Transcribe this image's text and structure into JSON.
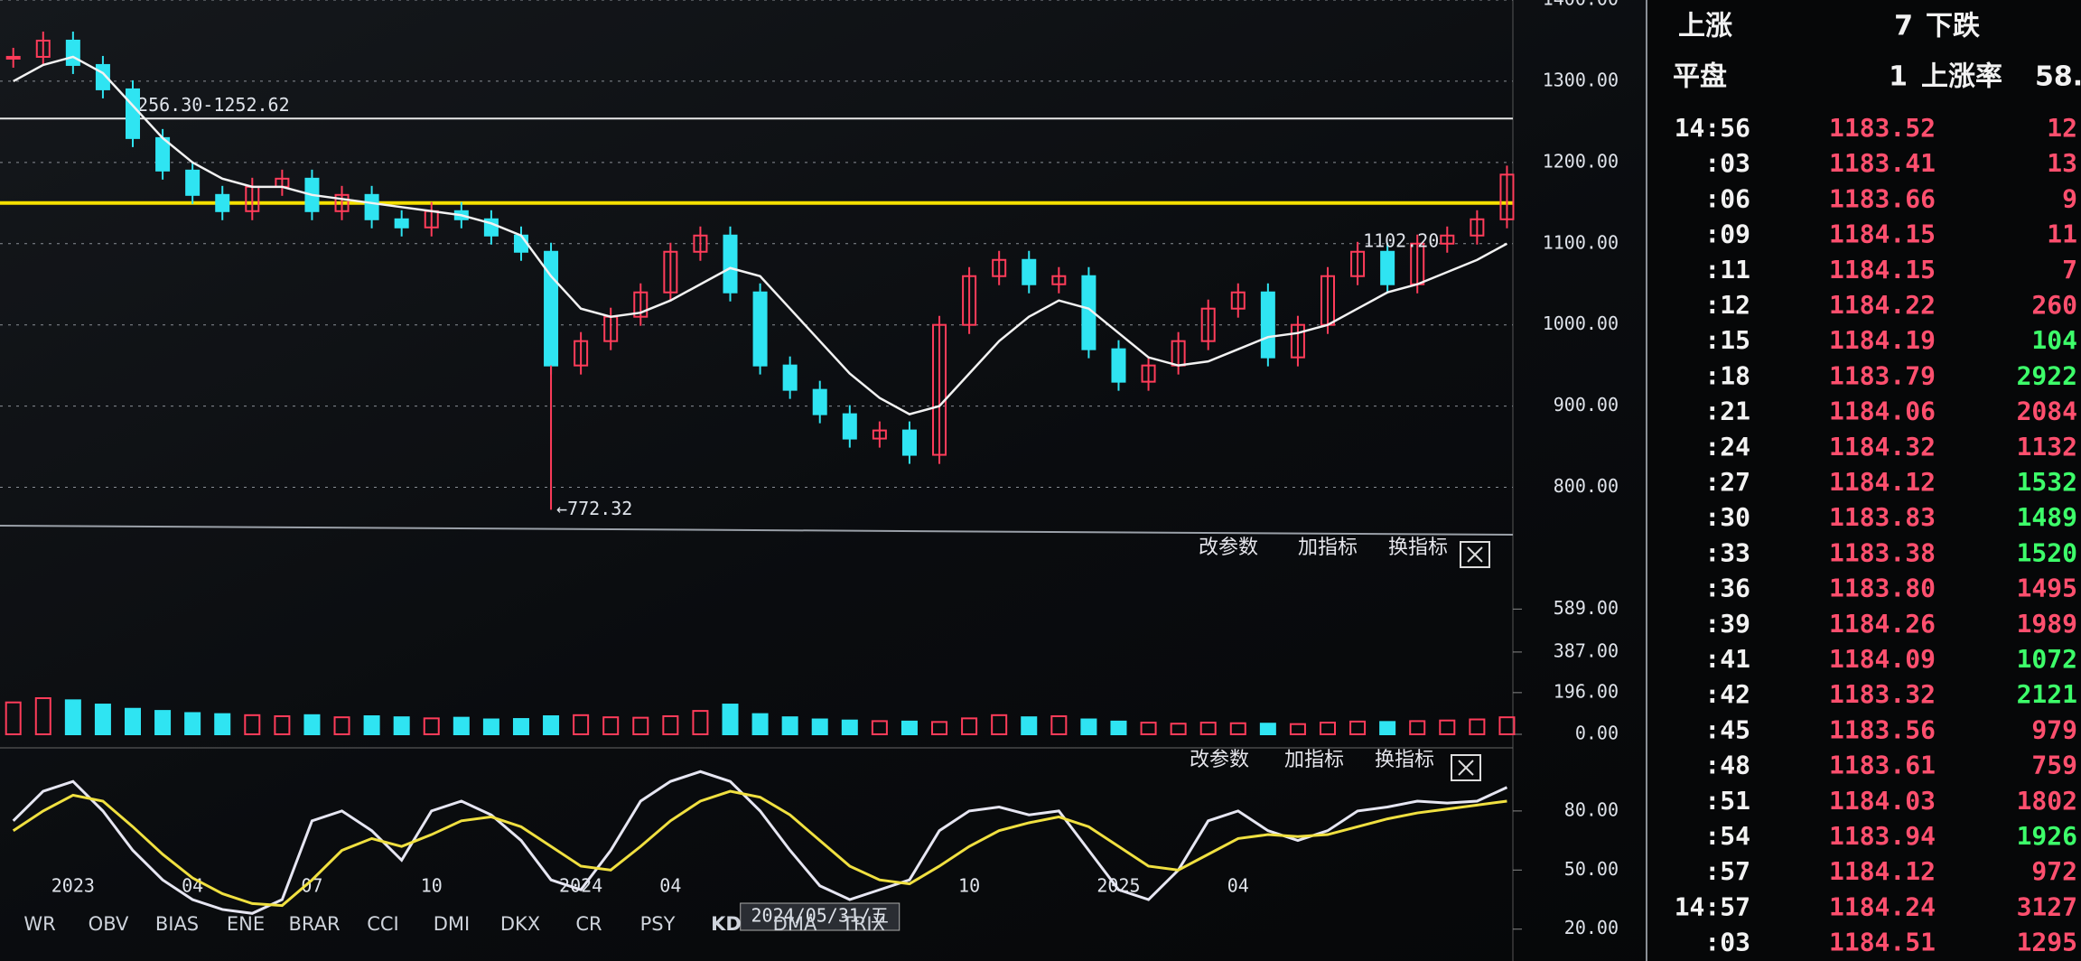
{
  "chart_data": [
    {
      "type": "candlestick",
      "values": [
        1330,
        1350,
        1320,
        1290,
        1230,
        1190,
        1160,
        1140,
        1170,
        1180,
        1140,
        1160,
        1130,
        1120,
        1140,
        1130,
        1110,
        1090,
        950,
        980,
        1010,
        1040,
        1090,
        1110,
        1040,
        950,
        920,
        890,
        860,
        870,
        840,
        1000,
        1060,
        1080,
        1050,
        1060,
        970,
        930,
        950,
        980,
        1020,
        1040,
        960,
        1000,
        1060,
        1090,
        1050,
        1100,
        1110,
        1130,
        1185
      ],
      "ma": [
        1300,
        1320,
        1330,
        1310,
        1270,
        1230,
        1200,
        1180,
        1170,
        1170,
        1160,
        1155,
        1150,
        1145,
        1140,
        1135,
        1125,
        1110,
        1060,
        1020,
        1010,
        1015,
        1030,
        1050,
        1070,
        1060,
        1020,
        980,
        940,
        910,
        890,
        900,
        940,
        980,
        1010,
        1030,
        1020,
        990,
        960,
        950,
        955,
        970,
        985,
        990,
        1000,
        1020,
        1040,
        1050,
        1065,
        1080,
        1100
      ],
      "categories": [
        null,
        null,
        "2023",
        null,
        null,
        null,
        "04",
        null,
        null,
        null,
        "07",
        null,
        null,
        null,
        "10",
        null,
        null,
        null,
        null,
        "2024",
        null,
        null,
        "04",
        null,
        null,
        null,
        null,
        "2024/05/31/五",
        null,
        null,
        null,
        null,
        "10",
        null,
        null,
        null,
        null,
        "2025",
        null,
        null,
        null,
        "04",
        null,
        null,
        null,
        null,
        null,
        null,
        null,
        null,
        null
      ],
      "cursor_index": 27,
      "ylim": [
        755,
        1400
      ],
      "yticks": [
        {
          "value": 800,
          "label": "800.00"
        },
        {
          "value": 900,
          "label": "900.00"
        },
        {
          "value": 1000,
          "label": "1000.00"
        },
        {
          "value": 1100,
          "label": "1100.00"
        },
        {
          "value": 1200,
          "label": "1200.00"
        },
        {
          "value": 1300,
          "label": "1300.00"
        },
        {
          "value": 1400,
          "label": "1400.00"
        }
      ],
      "grid": true,
      "color_up": "#ff3c5a",
      "color_down": "#2fe4f2",
      "ma_color": "#f2f2f2",
      "reference_lines": [
        {
          "value": 1150,
          "color": "#f5e000"
        },
        {
          "value": 1254,
          "color": "#e8e8e8",
          "label": "1256.30-1252.62"
        }
      ],
      "annotations": [
        {
          "text": "←772.32",
          "index": 18,
          "value": 772.32
        },
        {
          "text": "1102.20",
          "index": 45,
          "value": 1102.2
        }
      ]
    },
    {
      "type": "bar",
      "values": [
        150,
        170,
        160,
        140,
        120,
        110,
        100,
        95,
        90,
        85,
        90,
        80,
        85,
        80,
        75,
        78,
        70,
        72,
        85,
        90,
        80,
        78,
        85,
        110,
        140,
        95,
        80,
        70,
        65,
        62,
        60,
        58,
        75,
        90,
        80,
        85,
        70,
        60,
        55,
        50,
        55,
        52,
        50,
        48,
        55,
        60,
        58,
        62,
        65,
        70,
        80
      ],
      "ylim": [
        0,
        735
      ],
      "yticks": [
        {
          "value": 0,
          "label": "0.00"
        },
        {
          "value": 196,
          "label": "196.00"
        },
        {
          "value": 387,
          "label": "387.00"
        },
        {
          "value": 589,
          "label": "589.00"
        }
      ]
    },
    {
      "type": "line",
      "series": [
        {
          "color": "#e6e6f2",
          "values": [
            75,
            90,
            95,
            80,
            60,
            45,
            35,
            30,
            28,
            35,
            75,
            80,
            70,
            55,
            80,
            85,
            78,
            65,
            45,
            40,
            60,
            85,
            95,
            100,
            95,
            80,
            60,
            42,
            35,
            40,
            45,
            70,
            80,
            82,
            78,
            80,
            60,
            40,
            35,
            50,
            75,
            80,
            70,
            65,
            70,
            80,
            82,
            85,
            84,
            85,
            92
          ]
        },
        {
          "color": "#f0e040",
          "values": [
            70,
            80,
            88,
            85,
            72,
            58,
            46,
            38,
            33,
            32,
            45,
            60,
            66,
            62,
            68,
            75,
            77,
            72,
            62,
            52,
            50,
            62,
            75,
            85,
            90,
            87,
            78,
            65,
            52,
            45,
            43,
            52,
            62,
            70,
            74,
            77,
            72,
            62,
            52,
            50,
            58,
            66,
            68,
            67,
            68,
            72,
            76,
            79,
            81,
            83,
            85
          ]
        }
      ],
      "ylim": [
        13,
        107
      ],
      "yticks": [
        {
          "value": 20,
          "label": "20.00"
        },
        {
          "value": 50,
          "label": "50.00"
        },
        {
          "value": 80,
          "label": "80.00"
        }
      ]
    }
  ],
  "indicator_buttons": [
    [
      "改参数",
      "加指标",
      "换指标"
    ],
    [
      "改参数",
      "加指标",
      "换指标"
    ]
  ],
  "indicator_tabs": [
    "WR",
    "OBV",
    "BIAS",
    "ENE",
    "BRAR",
    "CCI",
    "DMI",
    "DKX",
    "CR",
    "PSY",
    "KD",
    "DMA",
    "TRIX"
  ],
  "selected_tab_index": 10,
  "market_summary": [
    [
      "上涨",
      "7",
      "下跌"
    ],
    [
      "平盘",
      "1",
      "上涨率",
      "58."
    ]
  ],
  "tick_table": {
    "rows": [
      [
        [
          "14:56"
        ],
        [
          "1183.52"
        ],
        [
          "12",
          "#ff4f6e"
        ]
      ],
      [
        [
          ":03"
        ],
        [
          "1183.41"
        ],
        [
          "13",
          "#ff4f6e"
        ]
      ],
      [
        [
          ":06"
        ],
        [
          "1183.66"
        ],
        [
          "9",
          "#ff4f6e"
        ]
      ],
      [
        [
          ":09"
        ],
        [
          "1184.15"
        ],
        [
          "11",
          "#ff4f6e"
        ]
      ],
      [
        [
          ":11"
        ],
        [
          "1184.15"
        ],
        [
          "7",
          "#ff4f6e"
        ]
      ],
      [
        [
          ":12"
        ],
        [
          "1184.22"
        ],
        [
          "260",
          "#ff4f6e"
        ]
      ],
      [
        [
          ":15"
        ],
        [
          "1184.19"
        ],
        [
          "104",
          "#3dff6a"
        ]
      ],
      [
        [
          ":18"
        ],
        [
          "1183.79"
        ],
        [
          "2922",
          "#3dff6a"
        ]
      ],
      [
        [
          ":21"
        ],
        [
          "1184.06"
        ],
        [
          "2084",
          "#ff4f6e"
        ]
      ],
      [
        [
          ":24"
        ],
        [
          "1184.32"
        ],
        [
          "1132",
          "#ff4f6e"
        ]
      ],
      [
        [
          ":27"
        ],
        [
          "1184.12"
        ],
        [
          "1532",
          "#3dff6a"
        ]
      ],
      [
        [
          ":30"
        ],
        [
          "1183.83"
        ],
        [
          "1489",
          "#3dff6a"
        ]
      ],
      [
        [
          ":33"
        ],
        [
          "1183.38"
        ],
        [
          "1520",
          "#3dff6a"
        ]
      ],
      [
        [
          ":36"
        ],
        [
          "1183.80"
        ],
        [
          "1495",
          "#ff4f6e"
        ]
      ],
      [
        [
          ":39"
        ],
        [
          "1184.26"
        ],
        [
          "1989",
          "#ff4f6e"
        ]
      ],
      [
        [
          ":41"
        ],
        [
          "1184.09"
        ],
        [
          "1072",
          "#3dff6a"
        ]
      ],
      [
        [
          ":42"
        ],
        [
          "1183.32"
        ],
        [
          "2121",
          "#3dff6a"
        ]
      ],
      [
        [
          ":45"
        ],
        [
          "1183.56"
        ],
        [
          "979",
          "#ff4f6e"
        ]
      ],
      [
        [
          ":48"
        ],
        [
          "1183.61"
        ],
        [
          "759",
          "#ff4f6e"
        ]
      ],
      [
        [
          ":51"
        ],
        [
          "1184.03"
        ],
        [
          "1802",
          "#ff4f6e"
        ]
      ],
      [
        [
          ":54"
        ],
        [
          "1183.94"
        ],
        [
          "1926",
          "#3dff6a"
        ]
      ],
      [
        [
          ":57"
        ],
        [
          "1184.12"
        ],
        [
          "972",
          "#ff4f6e"
        ]
      ],
      [
        [
          "14:57"
        ],
        [
          "1184.24"
        ],
        [
          "3127",
          "#ff4f6e"
        ]
      ],
      [
        [
          ":03"
        ],
        [
          "1184.51"
        ],
        [
          "1295",
          "#ff4f6e"
        ]
      ]
    ]
  }
}
